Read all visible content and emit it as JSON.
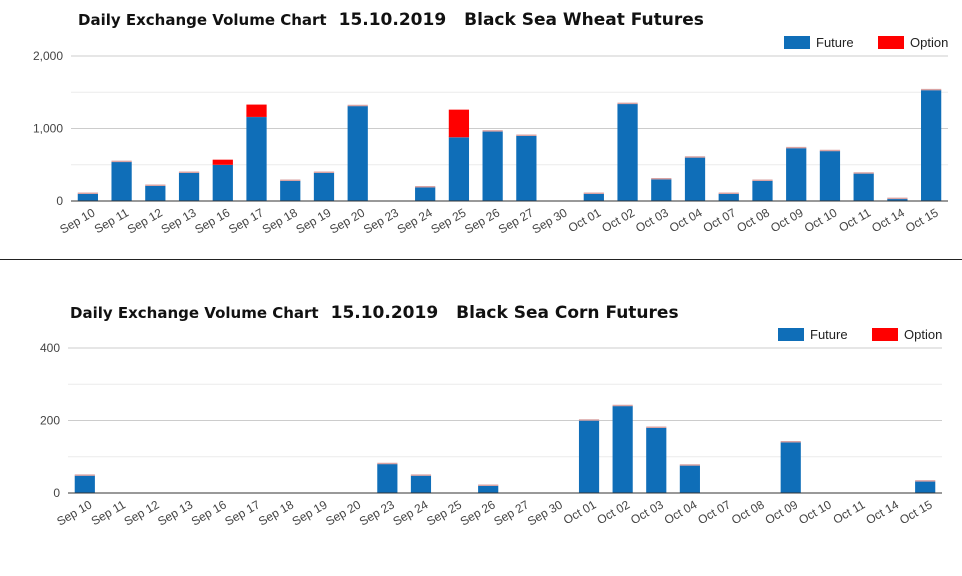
{
  "colors": {
    "future": "#0f6eb8",
    "option": "#ff0000",
    "grid": "#cccccc",
    "axis": "#333333"
  },
  "chart_data": [
    {
      "type": "bar",
      "stacked": true,
      "title": "Daily Exchange Volume Chart",
      "date": "15.10.2019",
      "product": "Black Sea Wheat Futures",
      "categories": [
        "Sep 10",
        "Sep 11",
        "Sep 12",
        "Sep 13",
        "Sep 16",
        "Sep 17",
        "Sep 18",
        "Sep 19",
        "Sep 20",
        "Sep 23",
        "Sep 24",
        "Sep 25",
        "Sep 26",
        "Sep 27",
        "Sep 30",
        "Oct 01",
        "Oct 02",
        "Oct 03",
        "Oct 04",
        "Oct 07",
        "Oct 08",
        "Oct 09",
        "Oct 10",
        "Oct 11",
        "Oct 14",
        "Oct 15"
      ],
      "series": [
        {
          "name": "Future",
          "values": [
            100,
            540,
            210,
            390,
            500,
            1160,
            280,
            390,
            1310,
            0,
            190,
            880,
            960,
            900,
            0,
            100,
            1340,
            300,
            600,
            100,
            280,
            730,
            690,
            380,
            30,
            1530
          ]
        },
        {
          "name": "Option",
          "values": [
            0,
            0,
            0,
            0,
            70,
            170,
            0,
            0,
            0,
            0,
            0,
            380,
            0,
            0,
            0,
            0,
            0,
            0,
            0,
            0,
            0,
            0,
            0,
            0,
            0,
            0
          ]
        }
      ],
      "ylim": [
        0,
        2000
      ],
      "yticks": [
        0,
        1000,
        2000
      ],
      "ytick_labels": [
        "0",
        "1,000",
        "2,000"
      ],
      "grid": true,
      "legend": "top-right",
      "xlabel": "",
      "ylabel": ""
    },
    {
      "type": "bar",
      "stacked": true,
      "title": "Daily Exchange Volume Chart",
      "date": "15.10.2019",
      "product": "Black Sea Corn Futures",
      "categories": [
        "Sep 10",
        "Sep 11",
        "Sep 12",
        "Sep 13",
        "Sep 16",
        "Sep 17",
        "Sep 18",
        "Sep 19",
        "Sep 20",
        "Sep 23",
        "Sep 24",
        "Sep 25",
        "Sep 26",
        "Sep 27",
        "Sep 30",
        "Oct 01",
        "Oct 02",
        "Oct 03",
        "Oct 04",
        "Oct 07",
        "Oct 08",
        "Oct 09",
        "Oct 10",
        "Oct 11",
        "Oct 14",
        "Oct 15"
      ],
      "series": [
        {
          "name": "Future",
          "values": [
            48,
            0,
            0,
            0,
            0,
            0,
            0,
            0,
            0,
            80,
            48,
            0,
            20,
            0,
            0,
            200,
            240,
            180,
            76,
            0,
            0,
            140,
            0,
            0,
            0,
            32
          ]
        },
        {
          "name": "Option",
          "values": [
            0,
            0,
            0,
            0,
            0,
            0,
            0,
            0,
            0,
            0,
            0,
            0,
            0,
            0,
            0,
            0,
            0,
            0,
            0,
            0,
            0,
            0,
            0,
            0,
            0,
            0
          ]
        }
      ],
      "ylim": [
        0,
        400
      ],
      "yticks": [
        0,
        200,
        400
      ],
      "ytick_labels": [
        "0",
        "200",
        "400"
      ],
      "grid": true,
      "legend": "top-right",
      "xlabel": "",
      "ylabel": ""
    }
  ]
}
